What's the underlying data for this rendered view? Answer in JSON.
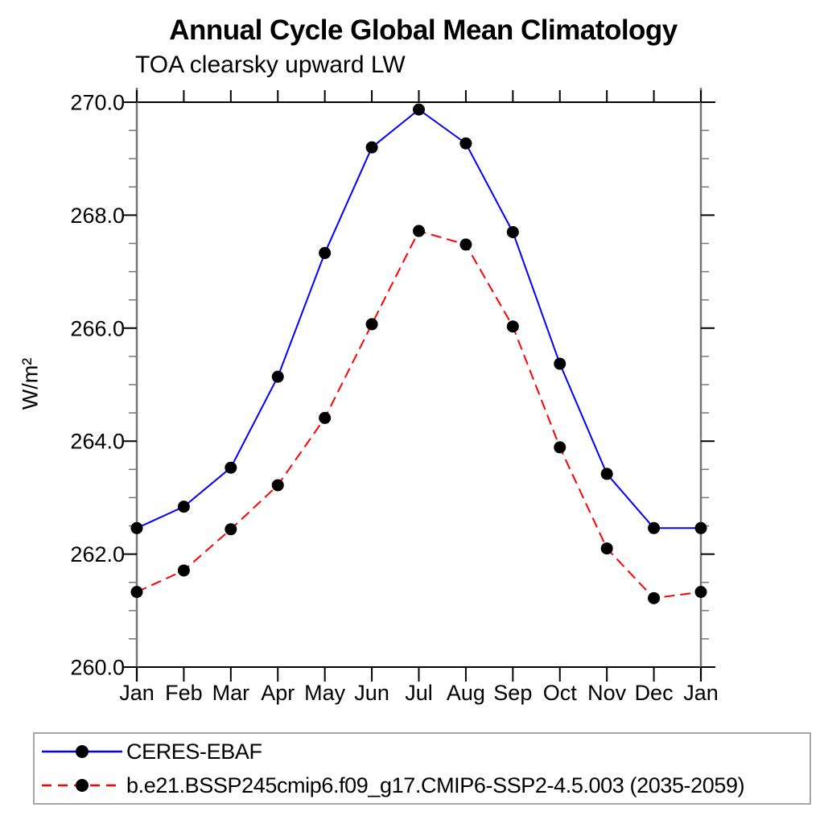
{
  "chart_data": {
    "type": "line",
    "title": "Annual Cycle Global Mean Climatology",
    "subtitle": "TOA clearsky upward LW",
    "ylabel": "W/m²",
    "xlabel": "",
    "categories": [
      "Jan",
      "Feb",
      "Mar",
      "Apr",
      "May",
      "Jun",
      "Jul",
      "Aug",
      "Sep",
      "Oct",
      "Nov",
      "Dec",
      "Jan"
    ],
    "ylim": [
      260.0,
      270.0
    ],
    "ytick_values": [
      260,
      262,
      264,
      266,
      268,
      270
    ],
    "ytick_labels": [
      "260.0",
      "262.0",
      "264.0",
      "266.0",
      "268.0",
      "270.0"
    ],
    "minor_tick_step": 0.5,
    "grid": false,
    "legend_position": "bottom",
    "colors": {
      "frame_horizontal": "#000000",
      "frame_vertical": "#767676",
      "major_tick": "#000000",
      "minor_tick": "#767676",
      "marker": "#000000"
    },
    "series": [
      {
        "name": "CERES-EBAF",
        "color": "#0000ff",
        "style": "solid",
        "marker": "circle",
        "values": [
          262.46,
          262.84,
          263.53,
          265.14,
          267.33,
          269.2,
          269.87,
          269.27,
          267.7,
          265.37,
          263.42,
          262.46,
          262.46
        ]
      },
      {
        "name": "b.e21.BSSP245cmip6.f09_g17.CMIP6-SSP2-4.5.003 (2035-2059)",
        "color": "#ff0000",
        "style": "dashed",
        "marker": "circle",
        "values": [
          261.33,
          261.71,
          262.44,
          263.22,
          264.41,
          266.07,
          267.72,
          267.48,
          266.03,
          263.89,
          262.1,
          261.22,
          261.33
        ]
      }
    ]
  }
}
